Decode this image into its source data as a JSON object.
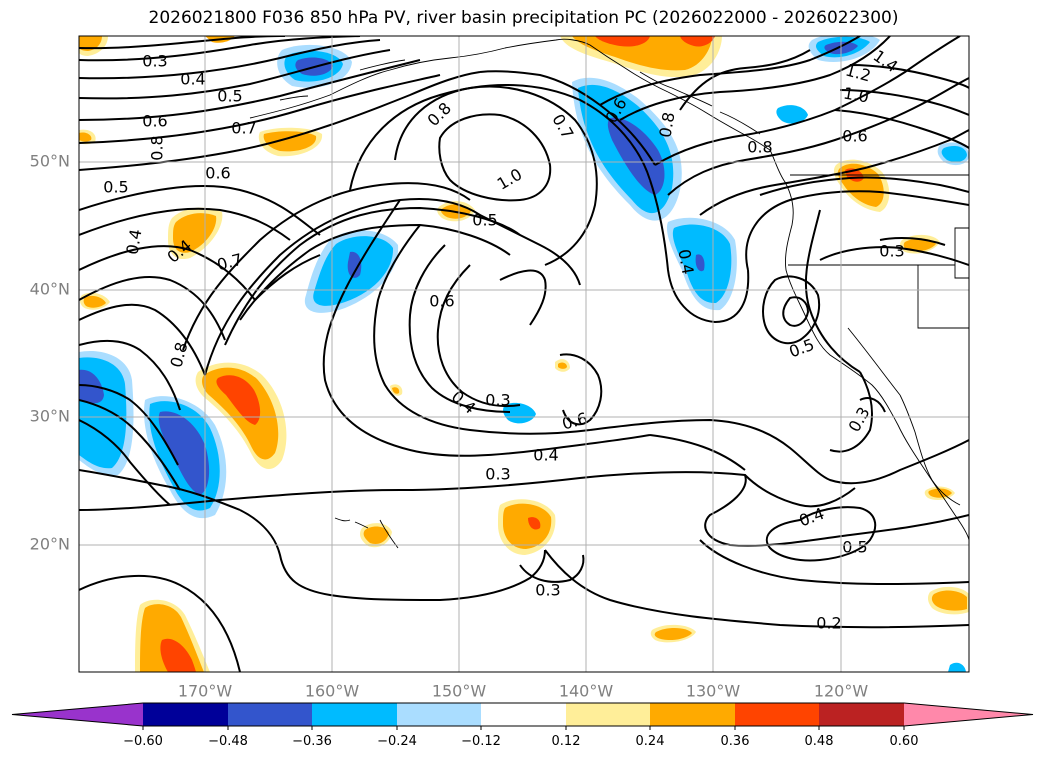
{
  "title": "2026021800 F036 850 hPa PV, river basin precipitation PC (2026022000 - 2026022300)",
  "lon_labels": [
    "170°W",
    "160°W",
    "150°W",
    "140°W",
    "130°W",
    "120°W"
  ],
  "lat_labels": [
    "50°N",
    "40°N",
    "30°N",
    "20°N"
  ],
  "colorbar": {
    "colors": [
      "#9933cc",
      "#000099",
      "#3355cc",
      "#00bbff",
      "#aaddff",
      "#ffffff",
      "#ffee99",
      "#ffaa00",
      "#ff4400",
      "#bb2222",
      "#ff88aa"
    ],
    "tick_labels": [
      "−0.60",
      "−0.48",
      "−0.36",
      "−0.24",
      "−0.12",
      "0.12",
      "0.24",
      "0.36",
      "0.48",
      "0.60"
    ]
  },
  "contour_labels": [
    "0.3",
    "0.4",
    "0.5",
    "0.6",
    "0.7",
    "0.8",
    "1.0",
    "0.5",
    "0.6",
    "0.8",
    "0.4",
    "0.4",
    "0.7",
    "0.8",
    "0.8",
    "0.5",
    "0.6",
    "0.3",
    "0.4",
    "0.6",
    "0.4",
    "0.3",
    "0.3",
    "0.6",
    "0.7",
    "0.8",
    "0.4",
    "1.4",
    "1.2",
    "1.0",
    "0.6",
    "0.3",
    "0.5",
    "0.3",
    "0.4",
    "0.5",
    "0.2"
  ]
}
